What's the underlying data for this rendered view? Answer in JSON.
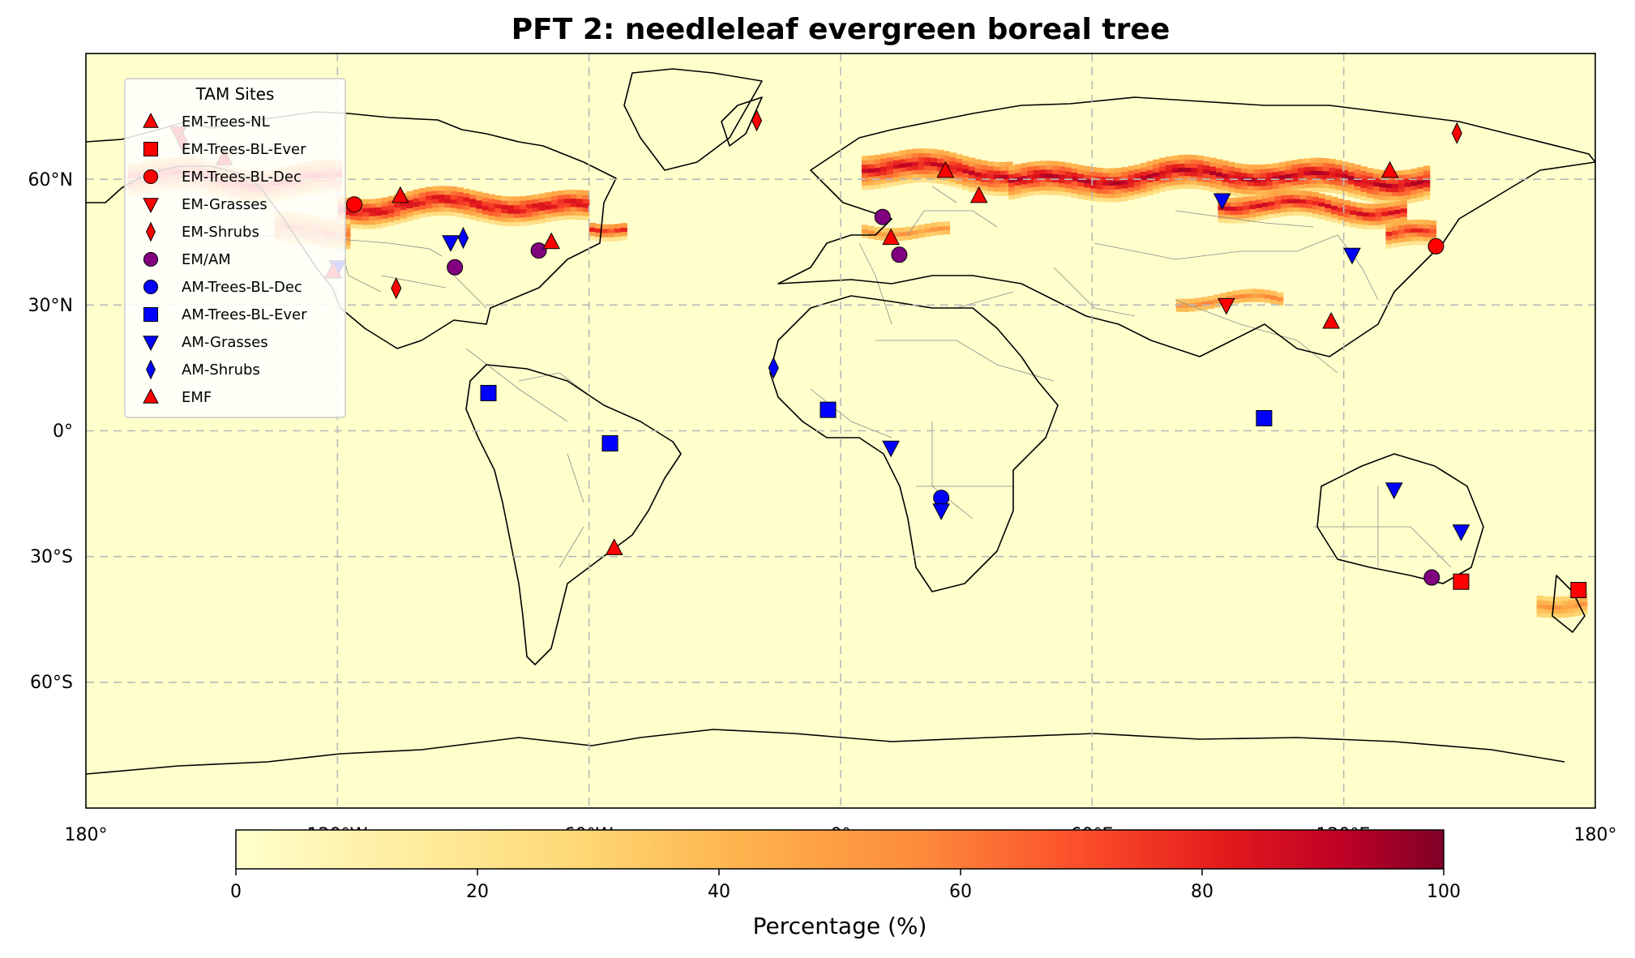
{
  "title": "PFT 2: needleleaf evergreen boreal tree",
  "colors": {
    "ocean_background": "#ffffcc",
    "em_marker": "#ff0000",
    "am_marker": "#0000ff",
    "em_am_marker": "#800080",
    "colormap": [
      "#ffffcc",
      "#fed976",
      "#feb24c",
      "#fd8d3c",
      "#fc4e2a",
      "#e31a1c",
      "#bd0026",
      "#800026"
    ]
  },
  "axes": {
    "x_ticks": [
      "180°",
      "120°W",
      "60°W",
      "0°",
      "60°E",
      "120°E",
      "180°"
    ],
    "y_ticks": [
      "60°N",
      "30°N",
      "0°",
      "30°S",
      "60°S"
    ],
    "lon_range": [
      -180,
      180
    ],
    "lat_range": [
      -90,
      90
    ],
    "grid": true
  },
  "legend": {
    "title": "TAM Sites",
    "placement": "upper-left",
    "entries": [
      {
        "label": "EM-Trees-NL",
        "marker": "triangle-up",
        "group": "em"
      },
      {
        "label": "EM-Trees-BL-Ever",
        "marker": "square",
        "group": "em"
      },
      {
        "label": "EM-Trees-BL-Dec",
        "marker": "circle",
        "group": "em"
      },
      {
        "label": "EM-Grasses",
        "marker": "triangle-down",
        "group": "em"
      },
      {
        "label": "EM-Shrubs",
        "marker": "thin-diamond",
        "group": "em"
      },
      {
        "label": "EM/AM",
        "marker": "circle",
        "group": "em_am"
      },
      {
        "label": "AM-Trees-BL-Dec",
        "marker": "circle",
        "group": "am"
      },
      {
        "label": "AM-Trees-BL-Ever",
        "marker": "square",
        "group": "am"
      },
      {
        "label": "AM-Grasses",
        "marker": "triangle-down",
        "group": "am"
      },
      {
        "label": "AM-Shrubs",
        "marker": "thin-diamond",
        "group": "am"
      },
      {
        "label": "EMF",
        "marker": "triangle-up",
        "group": "em"
      }
    ]
  },
  "colorbar": {
    "label": "Percentage (%)",
    "ticks": [
      "0",
      "20",
      "40",
      "60",
      "80",
      "100"
    ],
    "range": [
      0,
      100
    ]
  },
  "chart_data": {
    "type": "map",
    "variable": "needleleaf evergreen boreal tree cover",
    "units": "%",
    "boreal_bands": [
      {
        "lon_start": -170,
        "lon_end": -120,
        "lat_center": 60,
        "lat_half_width": 4,
        "intensity": 75
      },
      {
        "lon_start": -120,
        "lon_end": -60,
        "lat_center": 53,
        "lat_half_width": 3.5,
        "intensity": 85
      },
      {
        "lon_start": -135,
        "lon_end": -118,
        "lat_center": 48,
        "lat_half_width": 4,
        "intensity": 55
      },
      {
        "lon_start": -60,
        "lon_end": -52,
        "lat_center": 49,
        "lat_half_width": 2,
        "intensity": 70
      },
      {
        "lon_start": 5,
        "lon_end": 40,
        "lat_center": 62,
        "lat_half_width": 4,
        "intensity": 85
      },
      {
        "lon_start": 40,
        "lon_end": 140,
        "lat_center": 60,
        "lat_half_width": 4,
        "intensity": 90
      },
      {
        "lon_start": 90,
        "lon_end": 135,
        "lat_center": 53,
        "lat_half_width": 3,
        "intensity": 80
      },
      {
        "lon_start": 130,
        "lon_end": 142,
        "lat_center": 47,
        "lat_half_width": 3,
        "intensity": 70
      },
      {
        "lon_start": 80,
        "lon_end": 105,
        "lat_center": 30,
        "lat_half_width": 2,
        "intensity": 45
      },
      {
        "lon_start": 5,
        "lon_end": 25,
        "lat_center": 47,
        "lat_half_width": 2,
        "intensity": 40
      },
      {
        "lon_start": 166,
        "lon_end": 178,
        "lat_center": -42,
        "lat_half_width": 3,
        "intensity": 40
      }
    ],
    "sites": [
      {
        "type": "EM-Grasses",
        "lon": -158,
        "lat": 71
      },
      {
        "type": "EM-Shrubs",
        "lon": -157,
        "lat": 69
      },
      {
        "type": "EM-Trees-NL",
        "lon": -147,
        "lat": 65
      },
      {
        "type": "EM-Trees-BL-Dec",
        "lon": -116,
        "lat": 54
      },
      {
        "type": "EM-Trees-NL",
        "lon": -105,
        "lat": 56
      },
      {
        "type": "AM-Grasses",
        "lon": -120,
        "lat": 39
      },
      {
        "type": "EM-Trees-NL",
        "lon": -121,
        "lat": 38
      },
      {
        "type": "EM-Shrubs",
        "lon": -106,
        "lat": 34
      },
      {
        "type": "AM-Grasses",
        "lon": -93,
        "lat": 45
      },
      {
        "type": "AM-Shrubs",
        "lon": -90,
        "lat": 46
      },
      {
        "type": "EM/AM",
        "lon": -92,
        "lat": 39
      },
      {
        "type": "EM/AM",
        "lon": -72,
        "lat": 43
      },
      {
        "type": "EM-Trees-NL",
        "lon": -69,
        "lat": 45
      },
      {
        "type": "EM-Shrubs",
        "lon": -20,
        "lat": 74
      },
      {
        "type": "AM-Trees-BL-Ever",
        "lon": -84,
        "lat": 9
      },
      {
        "type": "AM-Trees-BL-Ever",
        "lon": -55,
        "lat": -3
      },
      {
        "type": "EM-Trees-NL",
        "lon": -54,
        "lat": -28
      },
      {
        "type": "AM-Shrubs",
        "lon": -16,
        "lat": 15
      },
      {
        "type": "AM-Trees-BL-Ever",
        "lon": -3,
        "lat": 5
      },
      {
        "type": "AM-Grasses",
        "lon": 12,
        "lat": -4
      },
      {
        "type": "AM-Trees-BL-Dec",
        "lon": 24,
        "lat": -16
      },
      {
        "type": "AM-Grasses",
        "lon": 24,
        "lat": -19
      },
      {
        "type": "EM/AM",
        "lon": 10,
        "lat": 51
      },
      {
        "type": "EM-Trees-NL",
        "lon": 12,
        "lat": 46
      },
      {
        "type": "EM/AM",
        "lon": 14,
        "lat": 42
      },
      {
        "type": "EM-Trees-NL",
        "lon": 25,
        "lat": 62
      },
      {
        "type": "EM-Trees-NL",
        "lon": 33,
        "lat": 56
      },
      {
        "type": "AM-Grasses",
        "lon": 91,
        "lat": 55
      },
      {
        "type": "EM-Grasses",
        "lon": 92,
        "lat": 30
      },
      {
        "type": "AM-Trees-BL-Ever",
        "lon": 101,
        "lat": 3
      },
      {
        "type": "EM-Trees-NL",
        "lon": 117,
        "lat": 26
      },
      {
        "type": "AM-Grasses",
        "lon": 122,
        "lat": 42
      },
      {
        "type": "EM-Trees-NL",
        "lon": 131,
        "lat": 62
      },
      {
        "type": "EM-Shrubs",
        "lon": 147,
        "lat": 71
      },
      {
        "type": "EM-Trees-BL-Dec",
        "lon": 142,
        "lat": 44
      },
      {
        "type": "AM-Grasses",
        "lon": 132,
        "lat": -14
      },
      {
        "type": "AM-Grasses",
        "lon": 148,
        "lat": -24
      },
      {
        "type": "EM/AM",
        "lon": 141,
        "lat": -35
      },
      {
        "type": "EM-Trees-BL-Ever",
        "lon": 148,
        "lat": -36
      },
      {
        "type": "EM-Trees-BL-Ever",
        "lon": 176,
        "lat": -38
      }
    ]
  }
}
